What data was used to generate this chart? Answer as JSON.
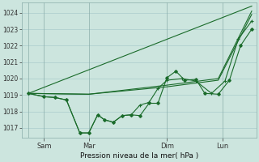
{
  "background_color": "#cce5de",
  "grid_color": "#aacccc",
  "line_color": "#1a6b2a",
  "xlabel": "Pression niveau de la mer( hPa )",
  "ylim": [
    1016.4,
    1024.6
  ],
  "yticks": [
    1017,
    1018,
    1019,
    1020,
    1021,
    1022,
    1023,
    1024
  ],
  "xlim": [
    0,
    10.5
  ],
  "xtick_labels": [
    "Sam",
    "Mar",
    "Dim",
    "Lun"
  ],
  "xtick_positions": [
    1.0,
    3.0,
    6.5,
    9.0
  ],
  "vlines": [
    0.3,
    1.0,
    3.0,
    6.5,
    9.0
  ],
  "line_smooth1": {
    "x": [
      0.3,
      10.3
    ],
    "y": [
      1019.1,
      1024.4
    ]
  },
  "line_smooth2": {
    "x": [
      0.3,
      3.0,
      6.5,
      8.8,
      10.3
    ],
    "y": [
      1019.1,
      1019.05,
      1019.5,
      1019.9,
      1023.9
    ]
  },
  "line_smooth3": {
    "x": [
      0.3,
      3.0,
      6.5,
      8.8,
      10.3
    ],
    "y": [
      1019.1,
      1019.05,
      1019.6,
      1020.0,
      1024.1
    ]
  },
  "line_detail1": {
    "x": [
      0.3,
      1.0,
      1.5,
      2.0,
      2.6,
      3.0,
      3.4,
      3.7,
      4.1,
      4.5,
      4.9,
      5.3,
      5.7,
      6.1,
      6.5,
      6.9,
      7.3,
      7.8,
      8.2,
      8.8,
      9.3,
      9.8,
      10.3
    ],
    "y": [
      1019.1,
      1018.9,
      1018.85,
      1018.7,
      1016.7,
      1016.7,
      1017.8,
      1017.5,
      1017.35,
      1017.75,
      1017.8,
      1017.75,
      1018.5,
      1018.5,
      1020.05,
      1020.45,
      1019.9,
      1019.95,
      1019.1,
      1019.05,
      1019.9,
      1022.0,
      1023.0
    ]
  },
  "line_detail2": {
    "x": [
      0.3,
      1.0,
      1.5,
      2.0,
      2.6,
      3.0,
      3.4,
      3.7,
      4.1,
      4.5,
      4.9,
      5.3,
      5.7,
      6.1,
      6.5,
      7.2,
      7.8,
      8.5,
      9.1,
      9.7,
      10.3
    ],
    "y": [
      1019.1,
      1018.9,
      1018.85,
      1018.7,
      1016.7,
      1016.7,
      1017.8,
      1017.5,
      1017.35,
      1017.75,
      1017.8,
      1018.4,
      1018.55,
      1019.4,
      1019.9,
      1020.0,
      1019.85,
      1019.1,
      1019.85,
      1022.4,
      1023.5
    ]
  }
}
